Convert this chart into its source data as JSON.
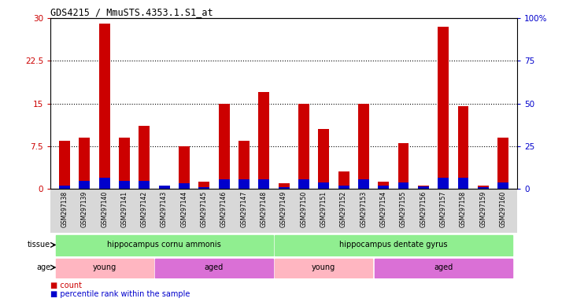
{
  "title": "GDS4215 / MmuSTS.4353.1.S1_at",
  "samples": [
    "GSM297138",
    "GSM297139",
    "GSM297140",
    "GSM297141",
    "GSM297142",
    "GSM297143",
    "GSM297144",
    "GSM297145",
    "GSM297146",
    "GSM297147",
    "GSM297148",
    "GSM297149",
    "GSM297150",
    "GSM297151",
    "GSM297152",
    "GSM297153",
    "GSM297154",
    "GSM297155",
    "GSM297156",
    "GSM297157",
    "GSM297158",
    "GSM297159",
    "GSM297160"
  ],
  "counts": [
    8.5,
    9.0,
    29.0,
    9.0,
    11.0,
    0.5,
    7.5,
    1.2,
    15.0,
    8.5,
    17.0,
    1.0,
    15.0,
    10.5,
    3.0,
    15.0,
    1.2,
    8.0,
    0.5,
    28.5,
    14.5,
    0.5,
    9.0
  ],
  "percentiles": [
    2.0,
    4.5,
    6.5,
    4.5,
    4.5,
    2.0,
    3.0,
    1.0,
    5.5,
    5.5,
    5.5,
    1.0,
    5.5,
    3.5,
    2.0,
    5.5,
    2.0,
    3.5,
    1.5,
    6.5,
    6.5,
    1.0,
    3.5
  ],
  "bar_color": "#cc0000",
  "pct_color": "#0000cc",
  "ylim_left": [
    0,
    30
  ],
  "ylim_right": [
    0,
    100
  ],
  "yticks_left": [
    0,
    7.5,
    15,
    22.5,
    30
  ],
  "ytick_labels_left": [
    "0",
    "7.5",
    "15",
    "22.5",
    "30"
  ],
  "yticks_right": [
    0,
    25,
    50,
    75,
    100
  ],
  "ytick_labels_right": [
    "0",
    "25",
    "50",
    "75",
    "100%"
  ],
  "hgrid_vals": [
    7.5,
    15,
    22.5
  ],
  "tissue_groups": [
    {
      "label": "hippocampus cornu ammonis",
      "start": 0,
      "end": 10,
      "color": "#90ee90"
    },
    {
      "label": "hippocampus dentate gyrus",
      "start": 11,
      "end": 22,
      "color": "#90ee90"
    }
  ],
  "age_groups": [
    {
      "label": "young",
      "start": 0,
      "end": 4,
      "color": "#ffb6c1"
    },
    {
      "label": "aged",
      "start": 5,
      "end": 10,
      "color": "#da70d6"
    },
    {
      "label": "young",
      "start": 11,
      "end": 15,
      "color": "#ffb6c1"
    },
    {
      "label": "aged",
      "start": 16,
      "end": 22,
      "color": "#da70d6"
    }
  ],
  "tissue_label": "tissue",
  "age_label": "age",
  "legend_count_label": "count",
  "legend_pct_label": "percentile rank within the sample",
  "bar_width": 0.55,
  "pct_scale": 0.3,
  "label_bg_color": "#d8d8d8"
}
